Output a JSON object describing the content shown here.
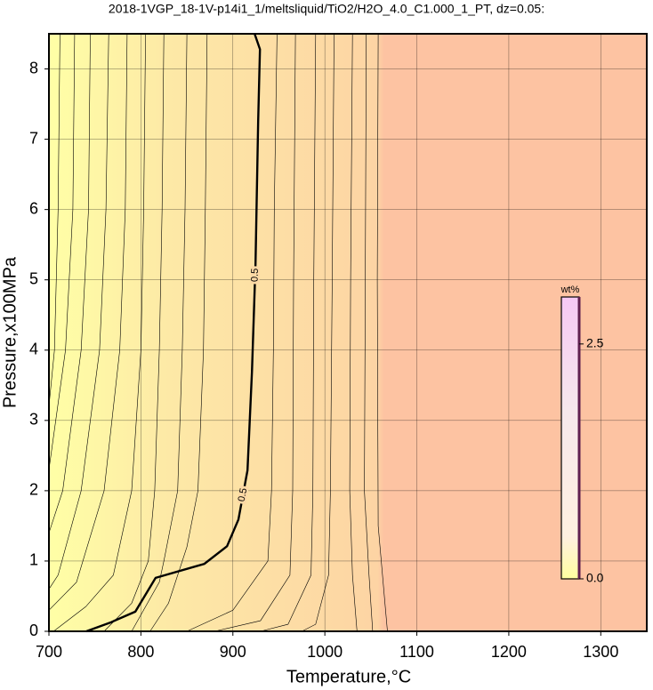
{
  "chart_data": {
    "type": "contour",
    "title": "2018-1VGP_18-1V-p14i1_1/meltsliquid/TiO2/H2O_4.0_C1.000_1_PT, dz=0.05:",
    "x_label": "Temperature,°C",
    "y_label": "Pressure,x100MPa",
    "xlim": [
      700,
      1350
    ],
    "ylim": [
      0,
      8.5
    ],
    "xticks": [
      700,
      800,
      900,
      1000,
      1100,
      1200,
      1300
    ],
    "yticks": [
      0,
      1,
      2,
      3,
      4,
      5,
      6,
      7,
      8
    ],
    "grid": true,
    "labeled_contour": {
      "level": 0.5,
      "color": "#000000",
      "x": [
        740.6,
        767.8,
        793.9,
        816,
        869,
        893.6,
        906,
        915.9,
        920.7,
        924.6,
        927.5,
        929.4,
        923.6
      ],
      "y": [
        0,
        0.13,
        0.28,
        0.76,
        0.96,
        1.21,
        1.59,
        2.29,
        3.69,
        5.22,
        7.26,
        8.28,
        8.5
      ]
    },
    "contours": [
      {
        "x": [
          712,
          710,
          706,
          700
        ],
        "y": [
          8.5,
          6,
          4,
          3.2
        ]
      },
      {
        "x": [
          728,
          726,
          718,
          700
        ],
        "y": [
          8.5,
          6,
          4,
          2.3
        ]
      },
      {
        "x": [
          745,
          743,
          735,
          715,
          700
        ],
        "y": [
          8.5,
          6,
          4,
          2,
          1.4
        ]
      },
      {
        "x": [
          765,
          762,
          755,
          735,
          710,
          700
        ],
        "y": [
          8.5,
          6,
          4,
          2,
          0.8,
          0.6
        ]
      },
      {
        "x": [
          785,
          783,
          777,
          760,
          730,
          700
        ],
        "y": [
          8.5,
          6,
          4,
          2,
          0.7,
          0.3
        ]
      },
      {
        "x": [
          805,
          803,
          800,
          790,
          770,
          740,
          705
        ],
        "y": [
          8.5,
          6,
          4,
          2,
          0.8,
          0.35,
          0
        ]
      },
      {
        "x": [
          825,
          823,
          820,
          815,
          808,
          790,
          760
        ],
        "y": [
          8.5,
          6,
          4,
          2,
          1,
          0.4,
          0
        ]
      },
      {
        "x": [
          850,
          848,
          845,
          840,
          825,
          820,
          790
        ],
        "y": [
          8.5,
          6,
          4,
          2,
          1,
          0.7,
          0
        ]
      },
      {
        "x": [
          872,
          870,
          868,
          862,
          850,
          830,
          810
        ],
        "y": [
          8.5,
          6,
          4,
          2,
          1.2,
          0.4,
          0
        ]
      },
      {
        "x": [
          948,
          945,
          944,
          942,
          938,
          900,
          850
        ],
        "y": [
          8.5,
          6,
          4,
          2,
          1,
          0.3,
          0
        ]
      },
      {
        "x": [
          968,
          966,
          965,
          962,
          930,
          880
        ],
        "y": [
          8.5,
          5,
          2,
          0.8,
          0.15,
          0
        ]
      },
      {
        "x": [
          990,
          988,
          987,
          985,
          960,
          930
        ],
        "y": [
          8.5,
          5,
          2,
          0.8,
          0.1,
          0
        ]
      },
      {
        "x": [
          1010,
          1008,
          1006,
          1004,
          990,
          975
        ],
        "y": [
          8.5,
          5,
          2,
          0.8,
          0.1,
          0
        ]
      },
      {
        "x": [
          1030,
          1028,
          1027,
          1030,
          1035
        ],
        "y": [
          8.5,
          5,
          2,
          0.8,
          0
        ]
      },
      {
        "x": [
          1045,
          1044,
          1043,
          1048,
          1052
        ],
        "y": [
          8.5,
          5,
          2,
          0.8,
          0
        ]
      },
      {
        "x": [
          1058,
          1057,
          1058,
          1066,
          1068
        ],
        "y": [
          8.5,
          5,
          1.5,
          0.3,
          0
        ]
      }
    ],
    "colorbar": {
      "label": "wt%",
      "clim": [
        0,
        3
      ],
      "ticks": [
        {
          "value": 0,
          "label": "0.0"
        },
        2.5
      ]
    }
  }
}
